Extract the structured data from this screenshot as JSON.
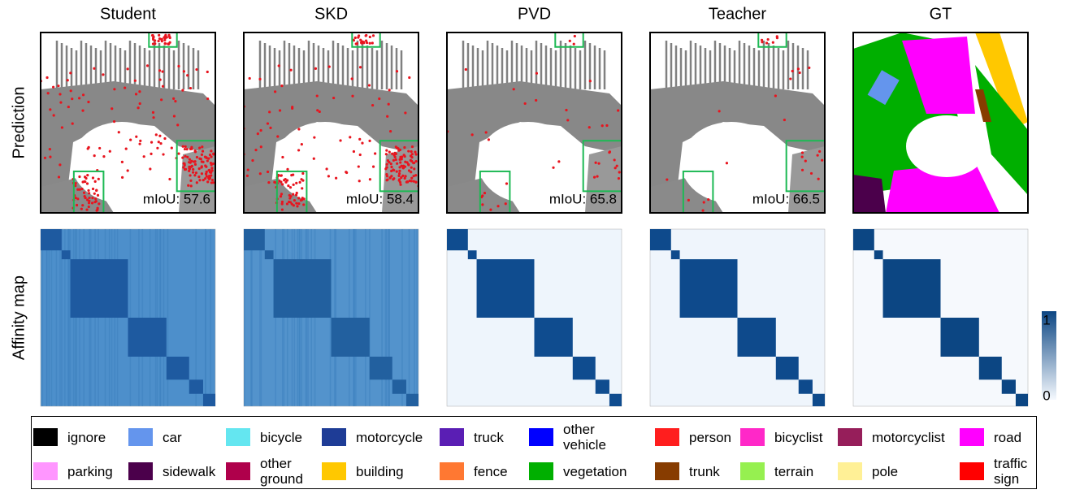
{
  "columns": [
    {
      "title": "Student",
      "miou": "mIoU: 57.6"
    },
    {
      "title": "SKD",
      "miou": "mIoU: 58.4"
    },
    {
      "title": "PVD",
      "miou": "mIoU: 65.8"
    },
    {
      "title": "Teacher",
      "miou": "mIoU: 66.5"
    },
    {
      "title": "GT"
    }
  ],
  "row_labels": [
    "Prediction",
    "Affinity map"
  ],
  "colorbar_ticks": [
    1,
    0
  ],
  "legend": [
    {
      "label": "ignore",
      "color": "#000000"
    },
    {
      "label": "car",
      "color": "#6495ed"
    },
    {
      "label": "bicycle",
      "color": "#64e6f0"
    },
    {
      "label": "motorcycle",
      "color": "#1e3c96"
    },
    {
      "label": "truck",
      "color": "#5a1eb4"
    },
    {
      "label": "other vehicle",
      "color": "#0000ff"
    },
    {
      "label": "person",
      "color": "#ff1e1e"
    },
    {
      "label": "bicyclist",
      "color": "#ff28c8"
    },
    {
      "label": "motorcyclist",
      "color": "#961e5a"
    },
    {
      "label": "road",
      "color": "#ff00ff"
    },
    {
      "label": "parking",
      "color": "#ff96ff"
    },
    {
      "label": "sidewalk",
      "color": "#4b004b"
    },
    {
      "label": "other ground",
      "color": "#af004b"
    },
    {
      "label": "building",
      "color": "#ffc800"
    },
    {
      "label": "fence",
      "color": "#ff7832"
    },
    {
      "label": "vegetation",
      "color": "#00af00"
    },
    {
      "label": "trunk",
      "color": "#873c00"
    },
    {
      "label": "terrain",
      "color": "#96f050"
    },
    {
      "label": "pole",
      "color": "#fff096"
    },
    {
      "label": "traffic sign",
      "color": "#ff0000"
    }
  ]
}
